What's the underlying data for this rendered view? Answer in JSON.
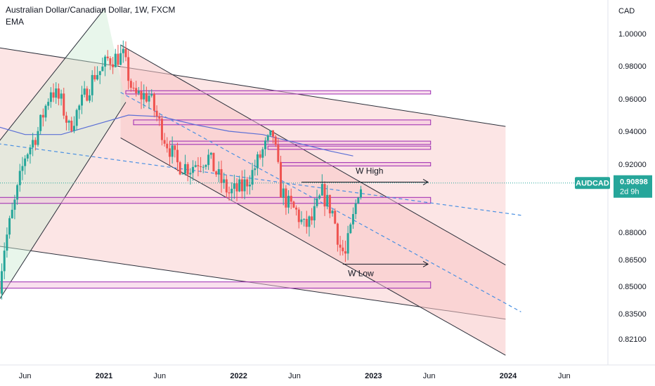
{
  "header": {
    "title": "Australian Dollar/Canadian Dollar, 1W, FXCM",
    "indicator": "EMA"
  },
  "price_axis": {
    "currency": "CAD",
    "ticks": [
      "1.00000",
      "0.98000",
      "0.96000",
      "0.94000",
      "0.92000",
      "0.88000",
      "0.86500",
      "0.85000",
      "0.83500",
      "0.82100"
    ]
  },
  "time_axis": {
    "ticks": [
      "Jun",
      "2021",
      "Jun",
      "2022",
      "Jun",
      "2023",
      "Jun",
      "2024",
      "Jun"
    ]
  },
  "badge": {
    "symbol": "AUDCAD",
    "price": "0.90898",
    "countdown": "2d 9h"
  },
  "annotations": {
    "high_label": "W High",
    "low_label": "W Low"
  },
  "colors": {
    "up": "#26a69a",
    "down": "#ef5350",
    "ema": "#5b6fd6",
    "trend_dashed": "#4a90e2",
    "zone_border": "#9c27b0",
    "channel_fill": "#f8c6c6",
    "green_channel_fill": "#cdebd3",
    "badge": "#26a69a"
  },
  "chart_data": {
    "type": "candlestick",
    "timeframe": "1W",
    "symbol": "AUDCAD",
    "last_price": 0.90898,
    "y_axis_unit": "CAD",
    "path_anchors": [
      {
        "date": "2020-03-23",
        "close": 0.852
      },
      {
        "date": "2020-04-06",
        "close": 0.872
      },
      {
        "date": "2020-05-04",
        "close": 0.897
      },
      {
        "date": "2020-06-01",
        "close": 0.925
      },
      {
        "date": "2020-07-06",
        "close": 0.94
      },
      {
        "date": "2020-08-10",
        "close": 0.966
      },
      {
        "date": "2020-09-07",
        "close": 0.958
      },
      {
        "date": "2020-09-28",
        "close": 0.942
      },
      {
        "date": "2020-11-02",
        "close": 0.958
      },
      {
        "date": "2020-12-07",
        "close": 0.975
      },
      {
        "date": "2020-12-28",
        "close": 0.978
      },
      {
        "date": "2021-01-11",
        "close": 0.984
      },
      {
        "date": "2021-02-22",
        "close": 0.986
      },
      {
        "date": "2021-03-22",
        "close": 0.962
      },
      {
        "date": "2021-05-03",
        "close": 0.962
      },
      {
        "date": "2021-06-14",
        "close": 0.936
      },
      {
        "date": "2021-07-19",
        "close": 0.92
      },
      {
        "date": "2021-08-23",
        "close": 0.918
      },
      {
        "date": "2021-09-13",
        "close": 0.922
      },
      {
        "date": "2021-10-11",
        "close": 0.924
      },
      {
        "date": "2021-11-08",
        "close": 0.912
      },
      {
        "date": "2021-12-06",
        "close": 0.903
      },
      {
        "date": "2022-01-10",
        "close": 0.906
      },
      {
        "date": "2022-02-07",
        "close": 0.915
      },
      {
        "date": "2022-03-07",
        "close": 0.928
      },
      {
        "date": "2022-04-04",
        "close": 0.938
      },
      {
        "date": "2022-04-25",
        "close": 0.905
      },
      {
        "date": "2022-05-16",
        "close": 0.896
      },
      {
        "date": "2022-06-06",
        "close": 0.892
      },
      {
        "date": "2022-06-27",
        "close": 0.883
      },
      {
        "date": "2022-07-18",
        "close": 0.887
      },
      {
        "date": "2022-08-15",
        "close": 0.903
      },
      {
        "date": "2022-09-12",
        "close": 0.892
      },
      {
        "date": "2022-10-03",
        "close": 0.872
      },
      {
        "date": "2022-10-17",
        "close": 0.867
      },
      {
        "date": "2022-11-07",
        "close": 0.888
      },
      {
        "date": "2022-11-21",
        "close": 0.905
      },
      {
        "date": "2022-12-05",
        "close": 0.909
      }
    ],
    "ema_curve": [
      {
        "date": "2020-03-02",
        "value": 0.944
      },
      {
        "date": "2020-06-01",
        "value": 0.938
      },
      {
        "date": "2020-09-07",
        "value": 0.938
      },
      {
        "date": "2020-12-07",
        "value": 0.944
      },
      {
        "date": "2021-03-08",
        "value": 0.95
      },
      {
        "date": "2021-06-07",
        "value": 0.949
      },
      {
        "date": "2021-09-06",
        "value": 0.944
      },
      {
        "date": "2021-12-06",
        "value": 0.94
      },
      {
        "date": "2022-03-07",
        "value": 0.938
      },
      {
        "date": "2022-06-06",
        "value": 0.933
      },
      {
        "date": "2022-09-05",
        "value": 0.928
      },
      {
        "date": "2022-11-07",
        "value": 0.925
      }
    ],
    "channels": [
      {
        "name": "upper-wide-channel",
        "top_start": {
          "date": "2020-03-02",
          "price": 0.992
        },
        "top_end": {
          "date": "2023-12-25",
          "price": 0.943
        },
        "bottom_start": {
          "date": "2020-03-02",
          "price": 0.873
        },
        "bottom_end": {
          "date": "2023-12-25",
          "price": 0.832
        }
      },
      {
        "name": "descending-channel",
        "top_start": {
          "date": "2021-02-15",
          "price": 0.993
        },
        "top_end": {
          "date": "2023-12-25",
          "price": 0.862
        },
        "bottom_start": {
          "date": "2021-02-15",
          "price": 0.936
        },
        "bottom_end": {
          "date": "2023-12-25",
          "price": 0.812
        }
      },
      {
        "name": "rising-channel",
        "top_start": {
          "date": "2020-03-02",
          "price": 0.928
        },
        "top_end": {
          "date": "2021-01-04",
          "price": 1.016
        },
        "bottom_start": {
          "date": "2020-03-02",
          "price": 0.836
        },
        "bottom_end": {
          "date": "2021-03-01",
          "price": 0.958
        }
      }
    ],
    "dashed_trendlines": [
      {
        "start": {
          "date": "2020-03-02",
          "price": 0.933
        },
        "end": {
          "date": "2024-02-05",
          "price": 0.89
        }
      },
      {
        "start": {
          "date": "2021-02-15",
          "price": 0.964
        },
        "end": {
          "date": "2024-02-05",
          "price": 0.836
        }
      }
    ],
    "zones": [
      {
        "name": "zone-0.964",
        "from": "2021-03-01",
        "to": "2023-06-05",
        "top": 0.965,
        "bottom": 0.963
      },
      {
        "name": "zone-0.946",
        "from": "2021-03-22",
        "to": "2023-06-05",
        "top": 0.947,
        "bottom": 0.944
      },
      {
        "name": "zone-0.933",
        "from": "2021-06-28",
        "to": "2023-06-05",
        "top": 0.934,
        "bottom": 0.932
      },
      {
        "name": "zone-0.930",
        "from": "2022-03-21",
        "to": "2023-06-05",
        "top": 0.931,
        "bottom": 0.929
      },
      {
        "name": "zone-0.920",
        "from": "2022-04-25",
        "to": "2023-06-05",
        "top": 0.921,
        "bottom": 0.919
      },
      {
        "name": "zone-0.899",
        "from": "2020-03-02",
        "to": "2023-06-05",
        "top": 0.9005,
        "bottom": 0.897
      },
      {
        "name": "zone-0.851",
        "from": "2020-03-02",
        "to": "2023-06-05",
        "top": 0.8525,
        "bottom": 0.849
      }
    ],
    "arrows": [
      {
        "label": "W High",
        "from": {
          "date": "2022-06-20",
          "price": 0.9095
        },
        "to": {
          "date": "2023-05-29",
          "price": 0.9095
        }
      },
      {
        "label": "W Low",
        "from": {
          "date": "2022-10-10",
          "price": 0.8625
        },
        "to": {
          "date": "2023-05-29",
          "price": 0.8625
        }
      }
    ]
  }
}
